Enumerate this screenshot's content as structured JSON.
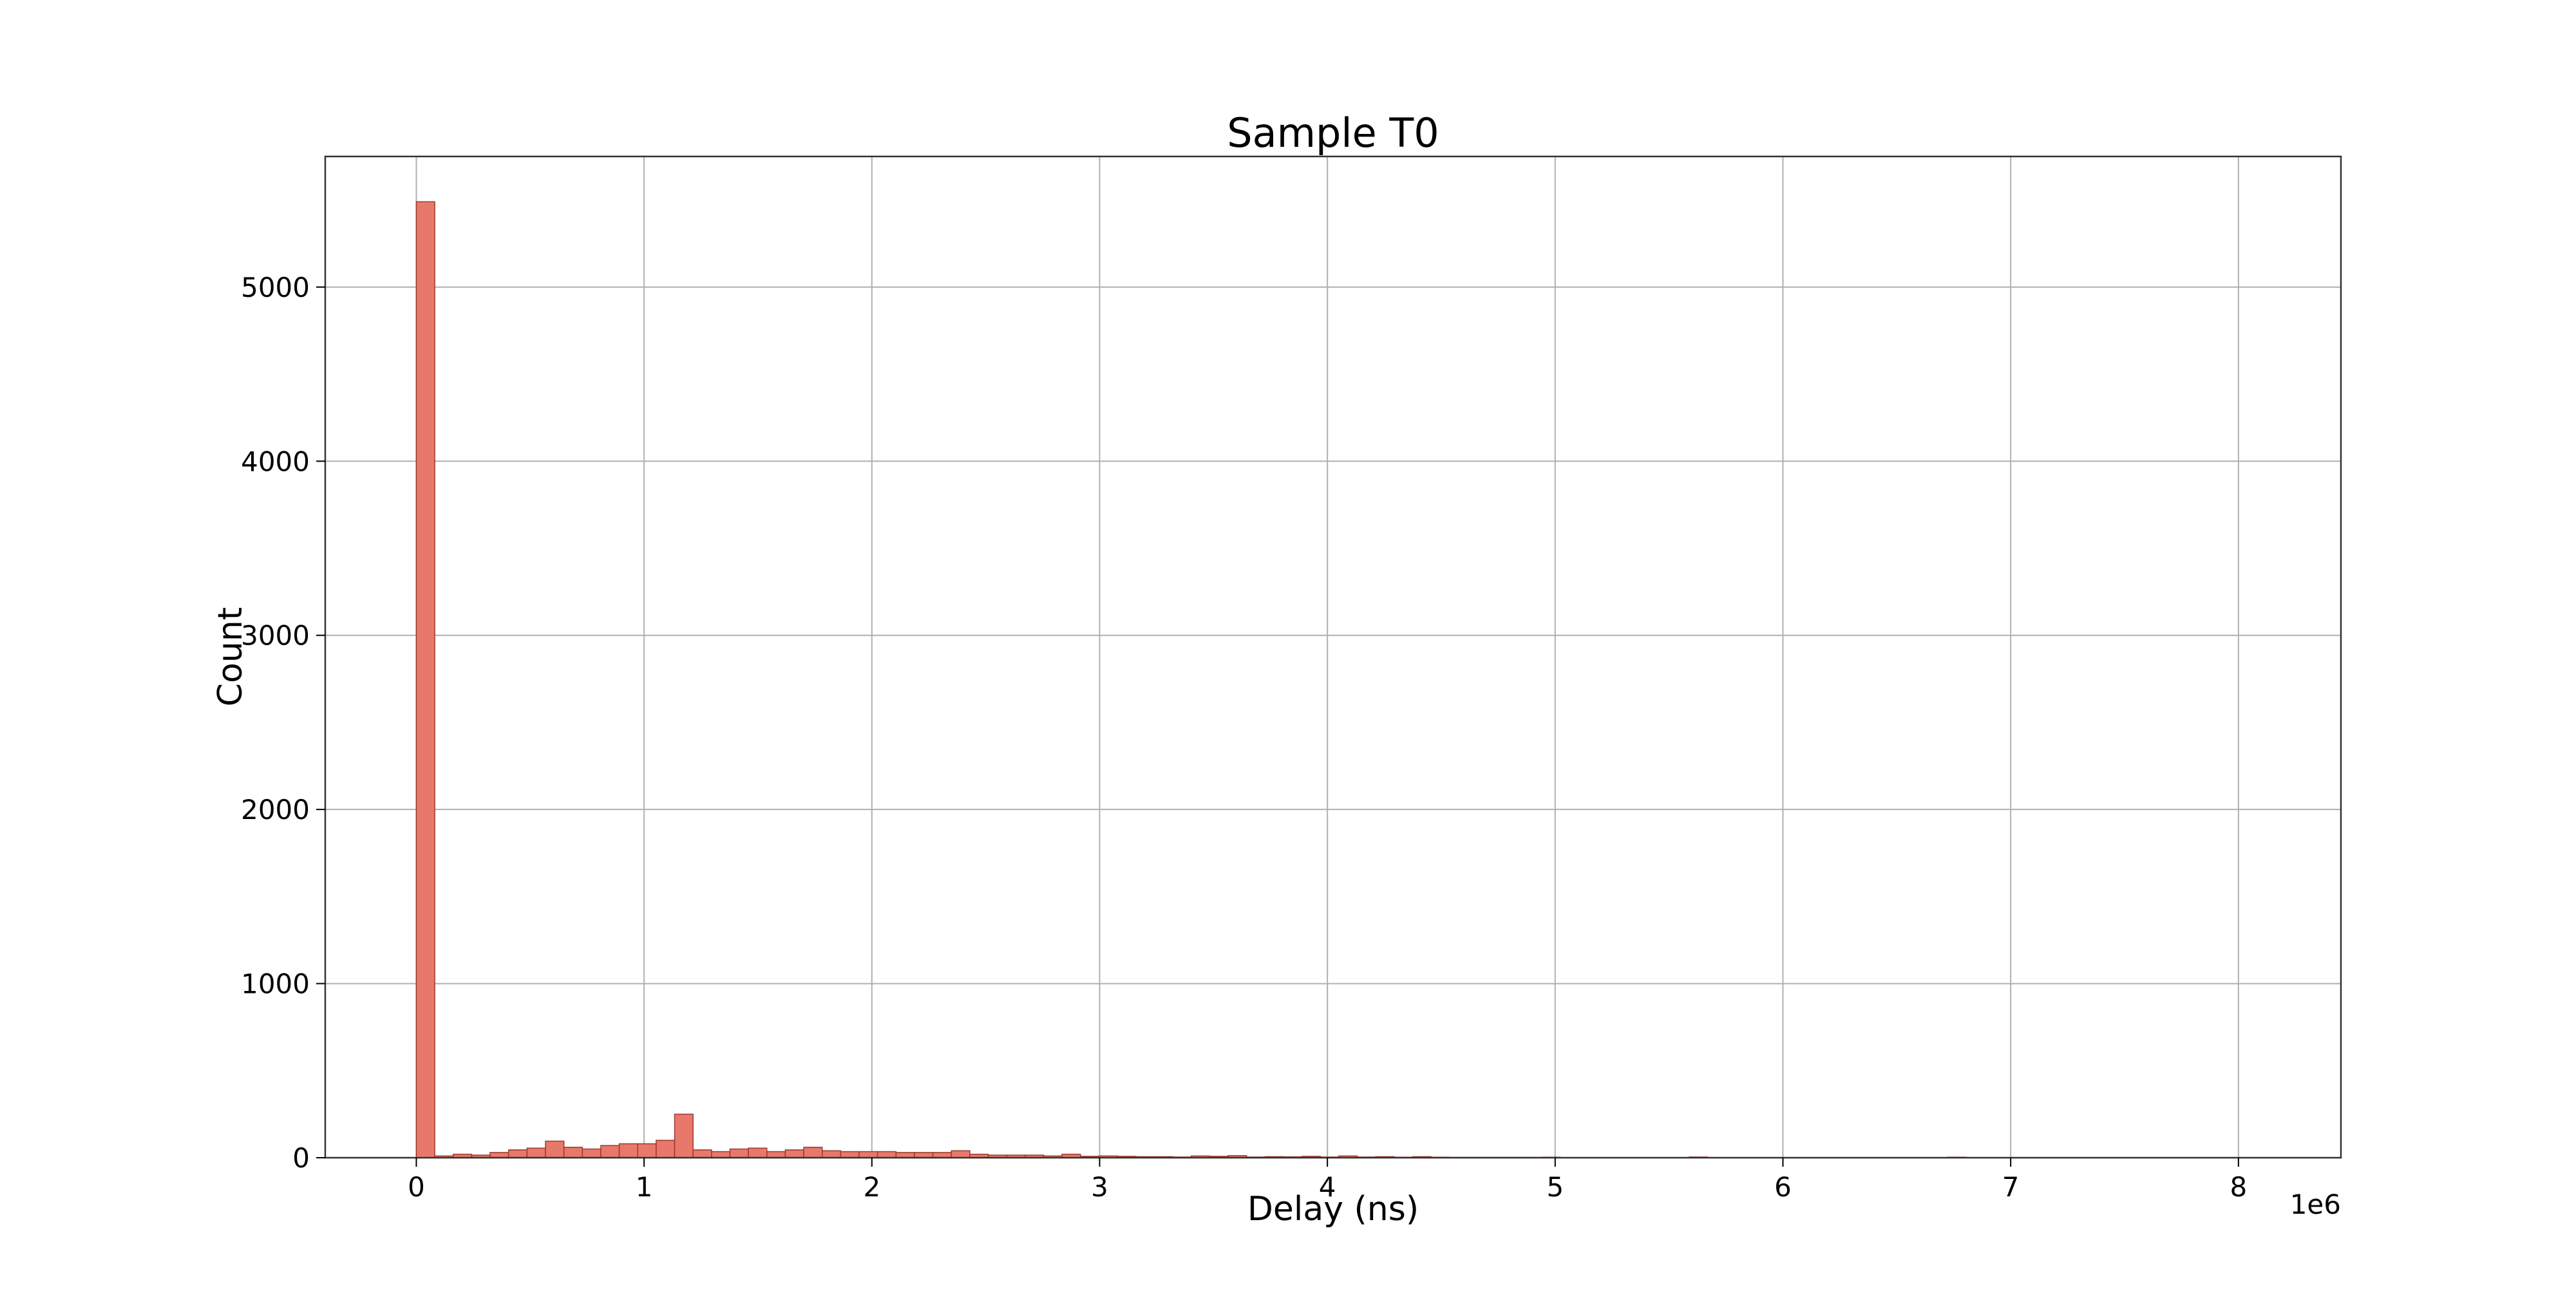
{
  "chart_data": {
    "type": "bar",
    "title": "Sample T0",
    "xlabel": "Delay (ns)",
    "ylabel": "Count",
    "x_offset_text": "1e6",
    "xlim": [
      -400000,
      8450000
    ],
    "ylim": [
      0,
      5750
    ],
    "x_ticks": [
      0,
      1000000,
      2000000,
      3000000,
      4000000,
      5000000,
      6000000,
      7000000,
      8000000
    ],
    "x_tick_labels": [
      "0",
      "1",
      "2",
      "3",
      "4",
      "5",
      "6",
      "7",
      "8"
    ],
    "y_ticks": [
      0,
      1000,
      2000,
      3000,
      4000,
      5000
    ],
    "y_tick_labels": [
      "0",
      "1000",
      "2000",
      "3000",
      "4000",
      "5000"
    ],
    "grid": true,
    "bin_start": 0,
    "bin_width": 81000,
    "values": [
      5490,
      10,
      20,
      15,
      30,
      45,
      55,
      95,
      60,
      50,
      70,
      80,
      80,
      100,
      250,
      45,
      35,
      50,
      55,
      35,
      45,
      60,
      40,
      35,
      35,
      35,
      30,
      30,
      30,
      40,
      20,
      15,
      15,
      15,
      10,
      20,
      8,
      10,
      8,
      6,
      6,
      4,
      10,
      8,
      12,
      4,
      6,
      5,
      8,
      4,
      10,
      4,
      6,
      3,
      6,
      3,
      2,
      2,
      2,
      2,
      2,
      3,
      1,
      1,
      1,
      1,
      1,
      1,
      1,
      4,
      1,
      1,
      1,
      1,
      1,
      1,
      1,
      1,
      1,
      1,
      1,
      1,
      1,
      3,
      1,
      1,
      1,
      1,
      1,
      1,
      1,
      1,
      1,
      1,
      1,
      1,
      1,
      1,
      1,
      1
    ]
  }
}
